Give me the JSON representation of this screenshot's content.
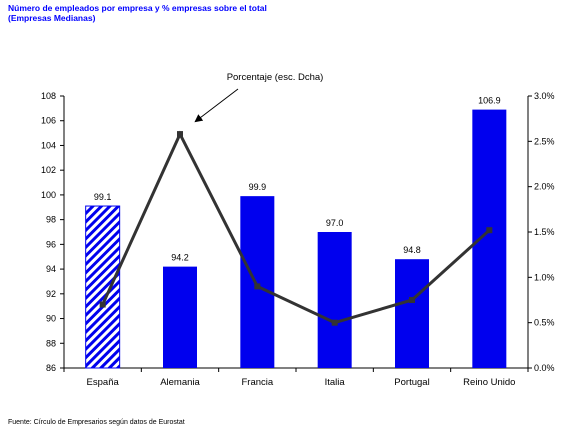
{
  "title": {
    "line1": "Número de empleados por empresa y % empresas sobre el total",
    "line2": "(Empresas Medianas)",
    "color": "#0000ff"
  },
  "source": "Fuente: Círculo de Empresarios según datos de Eurostat",
  "annotation": "Porcentaje (esc. Dcha)",
  "colors": {
    "bar": "#0000ee",
    "line": "#333333",
    "hatch": "#0000ee"
  },
  "chart_data": {
    "type": "bar",
    "categories": [
      "España",
      "Alemania",
      "Francia",
      "Italia",
      "Portugal",
      "Reino Unido"
    ],
    "values": [
      99.1,
      94.2,
      99.9,
      97.0,
      94.8,
      106.9
    ],
    "value_labels": [
      "99.1",
      "94.2",
      "99.9",
      "97.0",
      "94.8",
      "106.9"
    ],
    "ylim": [
      86,
      108
    ],
    "yticks": [
      86,
      88,
      90,
      92,
      94,
      96,
      98,
      100,
      102,
      104,
      106,
      108
    ],
    "highlight_category": "España",
    "secondary": {
      "type": "line",
      "name": "Porcentaje (esc. Dcha)",
      "values": [
        0.7,
        2.58,
        0.9,
        0.5,
        0.75,
        1.52
      ],
      "ylim": [
        0,
        3.0
      ],
      "yticks": [
        "0.0%",
        "0.5%",
        "1.0%",
        "1.5%",
        "2.0%",
        "2.5%",
        "3.0%"
      ],
      "ytick_values": [
        0,
        0.5,
        1.0,
        1.5,
        2.0,
        2.5,
        3.0
      ]
    },
    "grid": false
  }
}
